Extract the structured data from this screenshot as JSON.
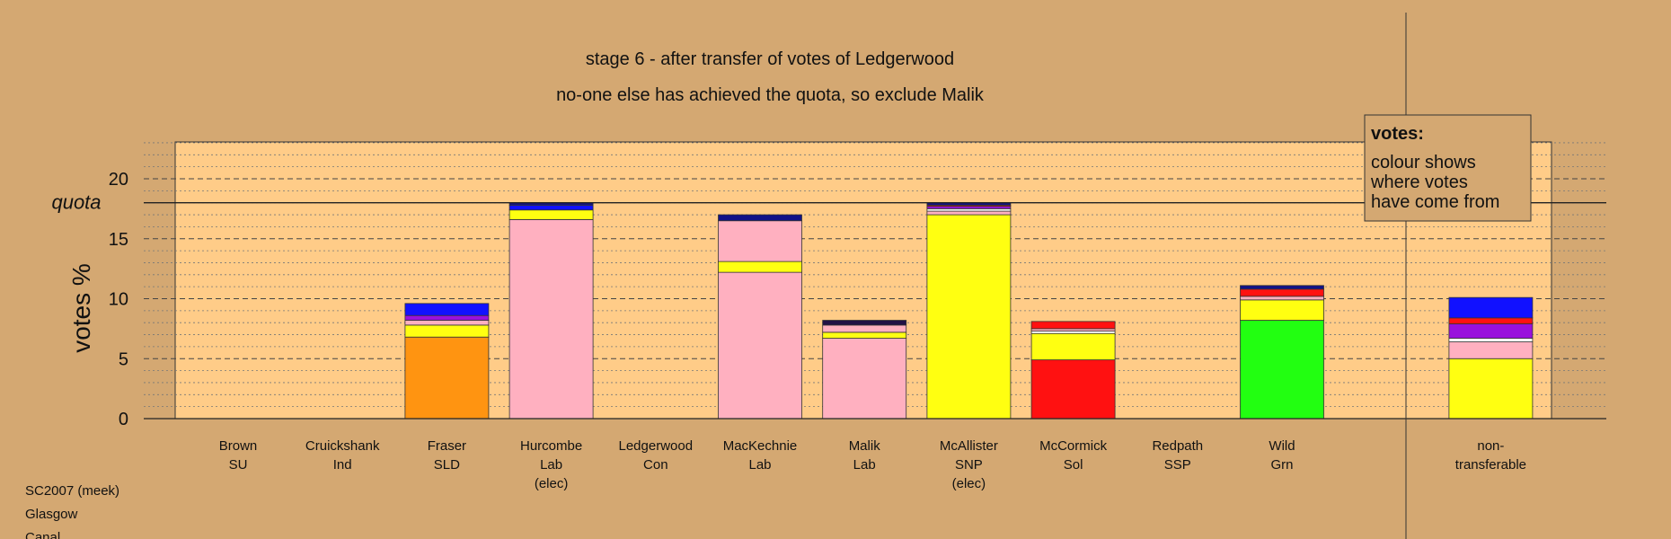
{
  "title_line1": "stage 6 - after transfer of votes of Ledgerwood",
  "title_line2": "no-one else has achieved the quota, so exclude Malik",
  "colors": {
    "background": "#d4a872",
    "plot_area": "#ffcc88",
    "orange": "#ff9411",
    "pink": "#ffb0c0",
    "yellow": "#ffff11",
    "blue": "#1111ff",
    "navy": "#111188",
    "purple": "#9911dd",
    "red": "#ff1111",
    "green": "#22ff11",
    "white": "#ffffff",
    "dark": "#221144"
  },
  "legend": {
    "title": "votes:",
    "lines": [
      "colour shows",
      "where votes",
      "have come from"
    ]
  },
  "footer": [
    "SC2007 (meek)",
    "Glasgow",
    "Canal"
  ],
  "chart_data": {
    "type": "bar",
    "stacked": true,
    "ylabel": "votes %",
    "ylim": [
      0,
      23
    ],
    "yticks": [
      0,
      5,
      10,
      15,
      20
    ],
    "quota": 18,
    "quota_label": "quota",
    "grid": "dotted minor every 1, dashed major every 5",
    "categories": [
      {
        "name": "Brown",
        "party": "SU",
        "note": "",
        "segments": []
      },
      {
        "name": "Cruickshank",
        "party": "Ind",
        "note": "",
        "segments": []
      },
      {
        "name": "Fraser",
        "party": "SLD",
        "note": "",
        "segments": [
          {
            "color": "orange",
            "value": 6.8
          },
          {
            "color": "yellow",
            "value": 1.0
          },
          {
            "color": "pink",
            "value": 0.4
          },
          {
            "color": "purple",
            "value": 0.4
          },
          {
            "color": "blue",
            "value": 1.0
          }
        ]
      },
      {
        "name": "Hurcombe",
        "party": "Lab",
        "note": "(elec)",
        "segments": [
          {
            "color": "pink",
            "value": 16.6
          },
          {
            "color": "yellow",
            "value": 0.8
          },
          {
            "color": "blue",
            "value": 0.4
          },
          {
            "color": "navy",
            "value": 0.2
          }
        ]
      },
      {
        "name": "Ledgerwood",
        "party": "Con",
        "note": "",
        "segments": []
      },
      {
        "name": "MacKechnie",
        "party": "Lab",
        "note": "",
        "segments": [
          {
            "color": "pink",
            "value": 12.2
          },
          {
            "color": "yellow",
            "value": 0.9
          },
          {
            "color": "pink",
            "value": 3.4
          },
          {
            "color": "navy",
            "value": 0.5
          }
        ]
      },
      {
        "name": "Malik",
        "party": "Lab",
        "note": "",
        "segments": [
          {
            "color": "pink",
            "value": 6.7
          },
          {
            "color": "yellow",
            "value": 0.5
          },
          {
            "color": "pink",
            "value": 0.6
          },
          {
            "color": "dark",
            "value": 0.4
          }
        ]
      },
      {
        "name": "McAllister",
        "party": "SNP",
        "note": "(elec)",
        "segments": [
          {
            "color": "yellow",
            "value": 17.0
          },
          {
            "color": "pink",
            "value": 0.3
          },
          {
            "color": "white",
            "value": 0.2
          },
          {
            "color": "purple",
            "value": 0.2
          },
          {
            "color": "red",
            "value": 0.1
          },
          {
            "color": "navy",
            "value": 0.2
          }
        ]
      },
      {
        "name": "McCormick",
        "party": "Sol",
        "note": "",
        "segments": [
          {
            "color": "red",
            "value": 4.9
          },
          {
            "color": "yellow",
            "value": 2.2
          },
          {
            "color": "white",
            "value": 0.2
          },
          {
            "color": "pink",
            "value": 0.2
          },
          {
            "color": "red",
            "value": 0.6
          }
        ]
      },
      {
        "name": "Redpath",
        "party": "SSP",
        "note": "",
        "segments": []
      },
      {
        "name": "Wild",
        "party": "Grn",
        "note": "",
        "segments": [
          {
            "color": "green",
            "value": 8.2
          },
          {
            "color": "yellow",
            "value": 1.7
          },
          {
            "color": "pink",
            "value": 0.3
          },
          {
            "color": "red",
            "value": 0.6
          },
          {
            "color": "navy",
            "value": 0.3
          }
        ]
      },
      {
        "name": "",
        "party": "",
        "note": "",
        "segments": []
      },
      {
        "name": "non-",
        "party": "transferable",
        "note": "",
        "segments": [
          {
            "color": "yellow",
            "value": 5.0
          },
          {
            "color": "pink",
            "value": 1.4
          },
          {
            "color": "white",
            "value": 0.3
          },
          {
            "color": "purple",
            "value": 1.2
          },
          {
            "color": "red",
            "value": 0.5
          },
          {
            "color": "blue",
            "value": 1.7
          }
        ]
      }
    ]
  }
}
